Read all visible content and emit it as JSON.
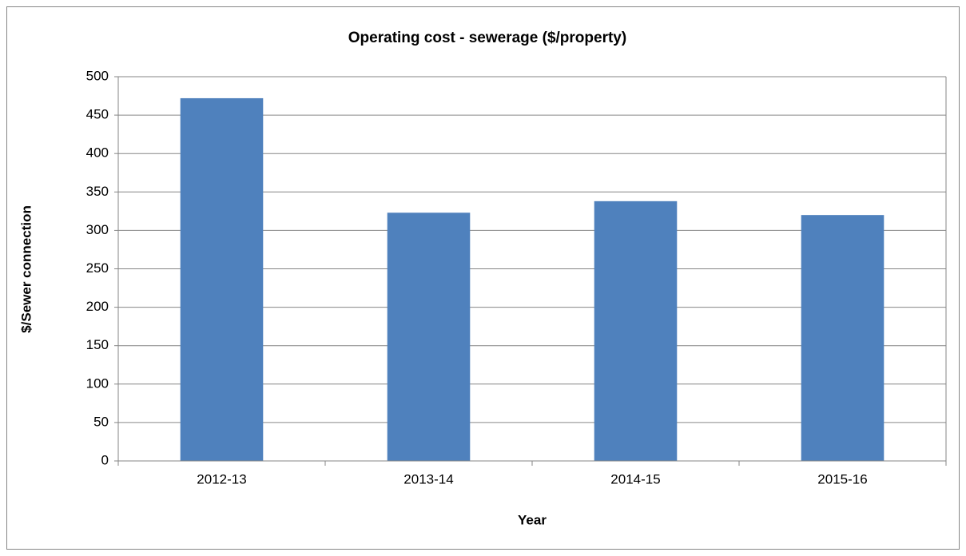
{
  "chart_data": {
    "type": "bar",
    "title": "Operating cost - sewerage ($/property)",
    "x_label": "Year",
    "y_label": "$/Sewer connection",
    "categories": [
      "2012-13",
      "2013-14",
      "2014-15",
      "2015-16"
    ],
    "values": [
      472,
      323,
      338,
      320
    ],
    "color": "#4f81bd",
    "ylim": [
      0,
      500
    ],
    "yticks": [
      0,
      50,
      100,
      150,
      200,
      250,
      300,
      350,
      400,
      450,
      500
    ],
    "grid": true
  }
}
